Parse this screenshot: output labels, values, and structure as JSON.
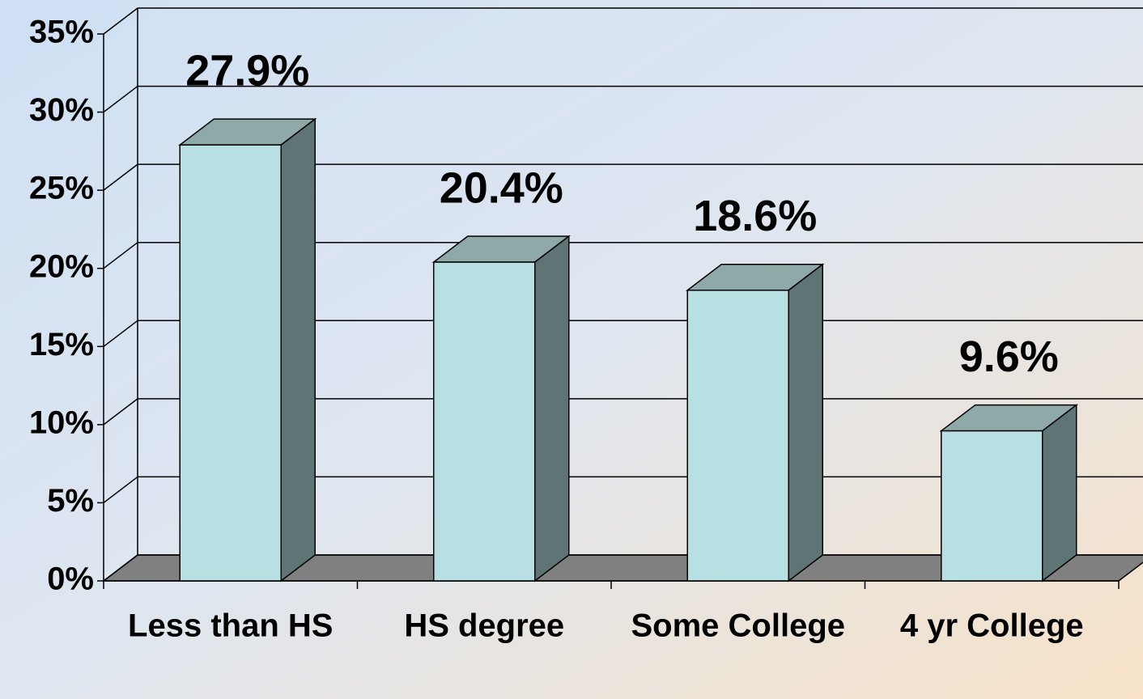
{
  "chart_data": {
    "type": "bar3d",
    "categories": [
      "Less than HS",
      "HS degree",
      "Some College",
      "4 yr College"
    ],
    "values": [
      27.9,
      20.4,
      18.6,
      9.6
    ],
    "value_labels": [
      "27.9%",
      "20.4%",
      "18.6%",
      "9.6%"
    ],
    "ylim": [
      0,
      35
    ],
    "yticks": [
      {
        "value": 0,
        "label": "0%"
      },
      {
        "value": 5,
        "label": "5%"
      },
      {
        "value": 10,
        "label": "10%"
      },
      {
        "value": 15,
        "label": "15%"
      },
      {
        "value": 20,
        "label": "20%"
      },
      {
        "value": 25,
        "label": "25%"
      },
      {
        "value": 30,
        "label": "30%"
      },
      {
        "value": 35,
        "label": "35%"
      }
    ],
    "grid": true,
    "colors": {
      "front": "#b8e0e3",
      "top": "#8fa8a8",
      "side": "#5f7474",
      "floor": "#808080"
    }
  }
}
